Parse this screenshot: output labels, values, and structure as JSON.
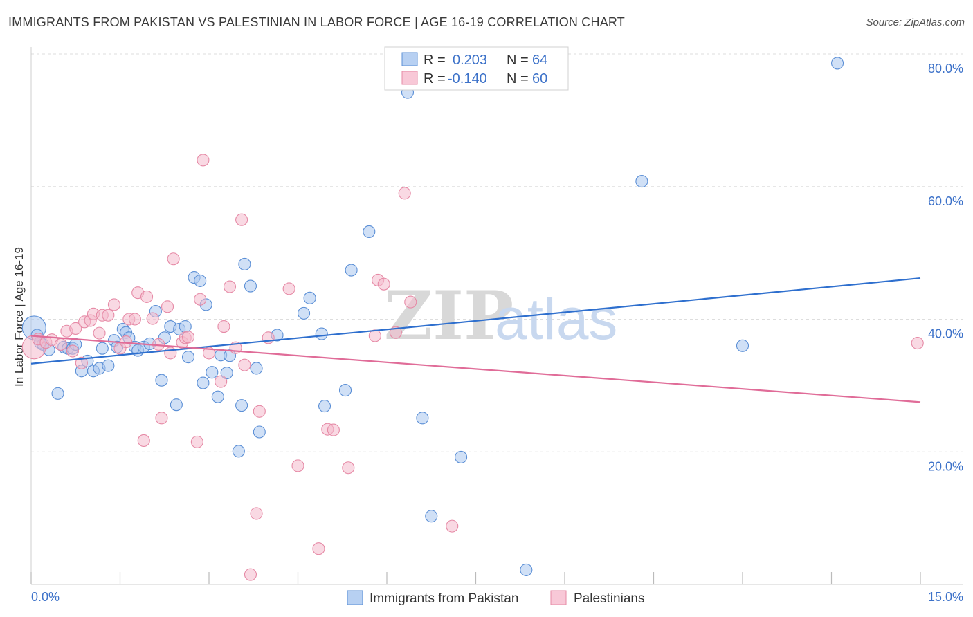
{
  "header": {
    "title": "IMMIGRANTS FROM PAKISTAN VS PALESTINIAN IN LABOR FORCE | AGE 16-19 CORRELATION CHART",
    "source": "Source: ZipAtlas.com"
  },
  "watermark": {
    "zip": "ZIP",
    "atlas": "atlas"
  },
  "colors": {
    "blue_fill": "#a9c6ee",
    "blue_stroke": "#5b8fd6",
    "blue_line": "#2e6fce",
    "pink_fill": "#f4b9cc",
    "pink_stroke": "#e68aa6",
    "pink_line": "#e06c98",
    "grid": "#dddddd",
    "tick_text": "#3d72c9"
  },
  "legend": {
    "rows": [
      {
        "r_label": "R =",
        "r_value": "0.203",
        "n_label": "N =",
        "n_value": "64"
      },
      {
        "r_label": "R =",
        "r_value": "-0.140",
        "n_label": "N =",
        "n_value": "60"
      }
    ]
  },
  "bottom_legend": {
    "series_a": "Immigrants from Pakistan",
    "series_b": "Palestinians"
  },
  "chart_data": {
    "type": "scatter",
    "title": "IMMIGRANTS FROM PAKISTAN VS PALESTINIAN IN LABOR FORCE | AGE 16-19 CORRELATION CHART",
    "xlabel": "",
    "ylabel": "In Labor Force | Age 16-19",
    "xlim": [
      0,
      15
    ],
    "ylim": [
      0,
      80
    ],
    "x_tick_labels": [
      "0.0%",
      "15.0%"
    ],
    "y_ticks": [
      20,
      40,
      60,
      80
    ],
    "y_tick_labels": [
      "20.0%",
      "40.0%",
      "60.0%",
      "80.0%"
    ],
    "grid": true,
    "legend_position": "top-center",
    "series": [
      {
        "name": "Immigrants from Pakistan",
        "trend": {
          "x": [
            0,
            15
          ],
          "y": [
            33.3,
            46.2
          ]
        },
        "points": [
          {
            "x": 0.05,
            "y": 38.7,
            "big": true
          },
          {
            "x": 0.1,
            "y": 37.6
          },
          {
            "x": 0.15,
            "y": 36.5
          },
          {
            "x": 0.2,
            "y": 36.2
          },
          {
            "x": 0.3,
            "y": 35.4
          },
          {
            "x": 0.45,
            "y": 28.8
          },
          {
            "x": 0.55,
            "y": 35.8
          },
          {
            "x": 0.62,
            "y": 35.6
          },
          {
            "x": 0.7,
            "y": 35.6
          },
          {
            "x": 0.75,
            "y": 36.2
          },
          {
            "x": 0.85,
            "y": 32.2
          },
          {
            "x": 0.95,
            "y": 33.7
          },
          {
            "x": 1.05,
            "y": 32.2
          },
          {
            "x": 1.15,
            "y": 32.6
          },
          {
            "x": 1.2,
            "y": 35.6
          },
          {
            "x": 1.3,
            "y": 33.0
          },
          {
            "x": 1.4,
            "y": 36.8
          },
          {
            "x": 1.45,
            "y": 35.8
          },
          {
            "x": 1.55,
            "y": 38.5
          },
          {
            "x": 1.6,
            "y": 38.0
          },
          {
            "x": 1.65,
            "y": 37.2
          },
          {
            "x": 1.75,
            "y": 35.8
          },
          {
            "x": 1.8,
            "y": 35.3
          },
          {
            "x": 1.9,
            "y": 35.8
          },
          {
            "x": 2.0,
            "y": 36.3
          },
          {
            "x": 2.1,
            "y": 41.2
          },
          {
            "x": 2.2,
            "y": 30.8
          },
          {
            "x": 2.25,
            "y": 37.2
          },
          {
            "x": 2.35,
            "y": 38.9
          },
          {
            "x": 2.45,
            "y": 27.1
          },
          {
            "x": 2.5,
            "y": 38.5
          },
          {
            "x": 2.6,
            "y": 38.9
          },
          {
            "x": 2.65,
            "y": 34.3
          },
          {
            "x": 2.75,
            "y": 46.3
          },
          {
            "x": 2.85,
            "y": 45.8
          },
          {
            "x": 2.9,
            "y": 30.4
          },
          {
            "x": 2.95,
            "y": 42.2
          },
          {
            "x": 3.05,
            "y": 32.0
          },
          {
            "x": 3.15,
            "y": 28.3
          },
          {
            "x": 3.2,
            "y": 34.6
          },
          {
            "x": 3.3,
            "y": 31.9
          },
          {
            "x": 3.35,
            "y": 34.5
          },
          {
            "x": 3.5,
            "y": 20.1
          },
          {
            "x": 3.55,
            "y": 27.0
          },
          {
            "x": 3.6,
            "y": 48.3
          },
          {
            "x": 3.7,
            "y": 45.0
          },
          {
            "x": 3.8,
            "y": 32.6
          },
          {
            "x": 3.85,
            "y": 23.0
          },
          {
            "x": 4.15,
            "y": 37.6
          },
          {
            "x": 4.6,
            "y": 40.9
          },
          {
            "x": 4.7,
            "y": 43.2
          },
          {
            "x": 4.9,
            "y": 37.8
          },
          {
            "x": 4.95,
            "y": 26.9
          },
          {
            "x": 5.3,
            "y": 29.3
          },
          {
            "x": 5.4,
            "y": 47.4
          },
          {
            "x": 5.7,
            "y": 53.2
          },
          {
            "x": 6.35,
            "y": 74.2
          },
          {
            "x": 6.6,
            "y": 25.1
          },
          {
            "x": 6.75,
            "y": 10.3
          },
          {
            "x": 7.25,
            "y": 19.2
          },
          {
            "x": 8.35,
            "y": 2.2
          },
          {
            "x": 10.3,
            "y": 60.8
          },
          {
            "x": 12.0,
            "y": 36.0
          },
          {
            "x": 13.6,
            "y": 78.6
          }
        ]
      },
      {
        "name": "Palestinians",
        "trend": {
          "x": [
            0,
            15
          ],
          "y": [
            37.5,
            27.5
          ]
        },
        "points": [
          {
            "x": 0.05,
            "y": 35.8,
            "big": true
          },
          {
            "x": 0.12,
            "y": 37.0
          },
          {
            "x": 0.25,
            "y": 36.5
          },
          {
            "x": 0.35,
            "y": 36.9
          },
          {
            "x": 0.5,
            "y": 36.2
          },
          {
            "x": 0.6,
            "y": 38.2
          },
          {
            "x": 0.7,
            "y": 35.2
          },
          {
            "x": 0.75,
            "y": 38.6
          },
          {
            "x": 0.85,
            "y": 33.4
          },
          {
            "x": 0.9,
            "y": 39.6
          },
          {
            "x": 1.0,
            "y": 39.8
          },
          {
            "x": 1.05,
            "y": 40.8
          },
          {
            "x": 1.15,
            "y": 37.9
          },
          {
            "x": 1.2,
            "y": 40.6
          },
          {
            "x": 1.3,
            "y": 40.6
          },
          {
            "x": 1.4,
            "y": 42.2
          },
          {
            "x": 1.5,
            "y": 35.6
          },
          {
            "x": 1.6,
            "y": 36.6
          },
          {
            "x": 1.65,
            "y": 40.0
          },
          {
            "x": 1.75,
            "y": 40.0
          },
          {
            "x": 1.8,
            "y": 44.0
          },
          {
            "x": 1.9,
            "y": 21.7
          },
          {
            "x": 1.95,
            "y": 43.4
          },
          {
            "x": 2.05,
            "y": 40.1
          },
          {
            "x": 2.15,
            "y": 36.2
          },
          {
            "x": 2.2,
            "y": 25.1
          },
          {
            "x": 2.3,
            "y": 41.9
          },
          {
            "x": 2.35,
            "y": 34.9
          },
          {
            "x": 2.4,
            "y": 49.1
          },
          {
            "x": 2.55,
            "y": 36.5
          },
          {
            "x": 2.6,
            "y": 37.2
          },
          {
            "x": 2.65,
            "y": 37.3
          },
          {
            "x": 2.8,
            "y": 21.5
          },
          {
            "x": 2.85,
            "y": 43.0
          },
          {
            "x": 2.9,
            "y": 64.0
          },
          {
            "x": 3.0,
            "y": 34.9
          },
          {
            "x": 3.2,
            "y": 30.6
          },
          {
            "x": 3.25,
            "y": 38.9
          },
          {
            "x": 3.35,
            "y": 44.9
          },
          {
            "x": 3.45,
            "y": 35.7
          },
          {
            "x": 3.55,
            "y": 55.0
          },
          {
            "x": 3.6,
            "y": 33.1
          },
          {
            "x": 3.7,
            "y": 1.5
          },
          {
            "x": 3.8,
            "y": 10.7
          },
          {
            "x": 3.85,
            "y": 26.1
          },
          {
            "x": 4.0,
            "y": 37.2
          },
          {
            "x": 4.35,
            "y": 44.6
          },
          {
            "x": 4.5,
            "y": 17.9
          },
          {
            "x": 4.85,
            "y": 5.4
          },
          {
            "x": 5.0,
            "y": 23.4
          },
          {
            "x": 5.1,
            "y": 23.3
          },
          {
            "x": 5.35,
            "y": 17.6
          },
          {
            "x": 5.8,
            "y": 37.5
          },
          {
            "x": 5.85,
            "y": 45.9
          },
          {
            "x": 5.95,
            "y": 45.3
          },
          {
            "x": 6.15,
            "y": 38.0
          },
          {
            "x": 6.3,
            "y": 59.0
          },
          {
            "x": 6.4,
            "y": 42.6
          },
          {
            "x": 7.1,
            "y": 8.8
          },
          {
            "x": 14.95,
            "y": 36.4
          }
        ]
      }
    ]
  }
}
